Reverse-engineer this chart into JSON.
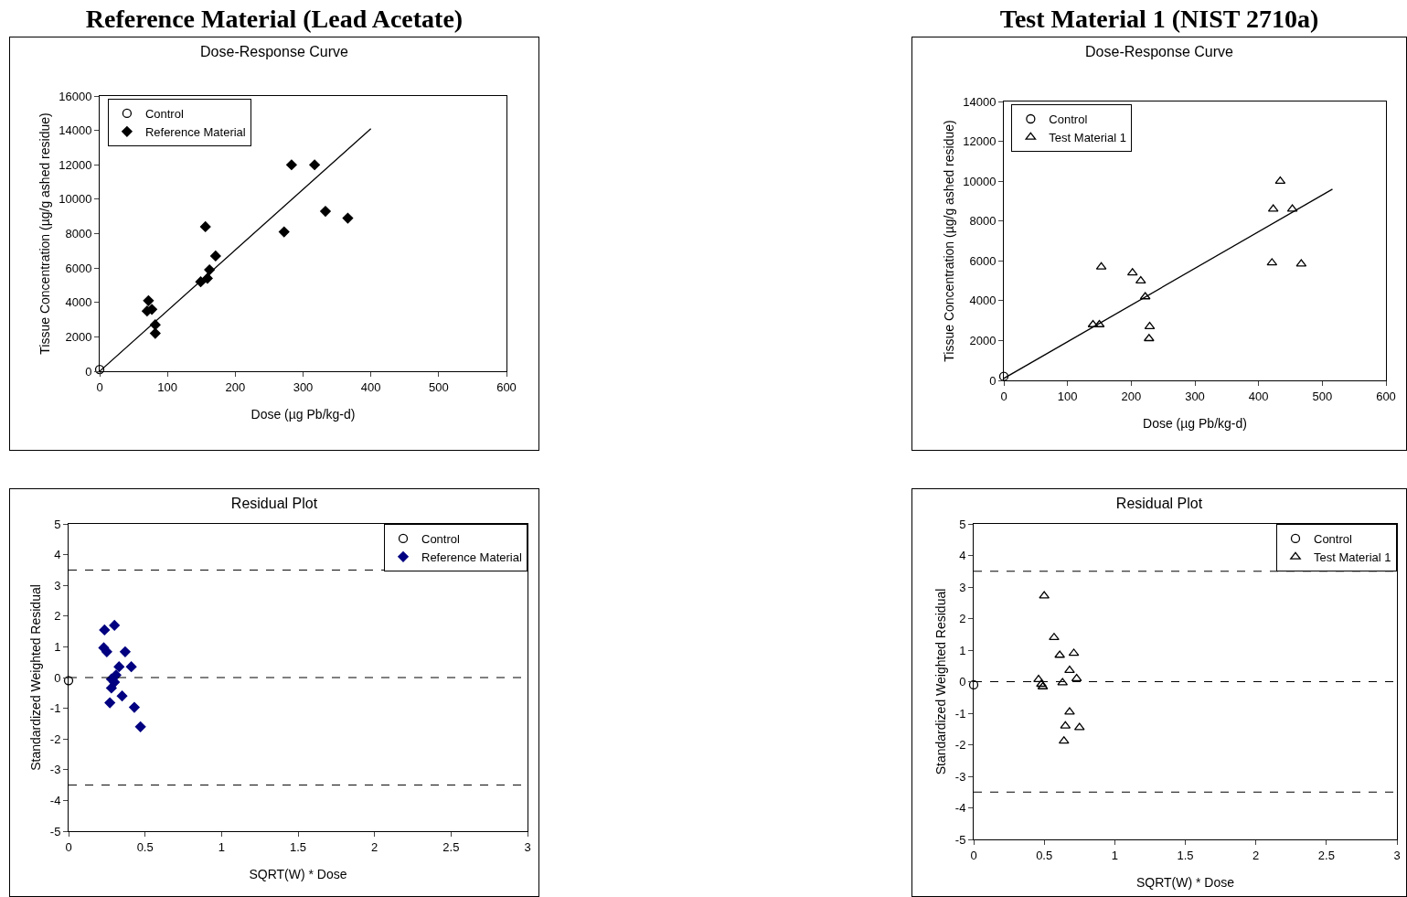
{
  "chart_data": [
    {
      "type": "scatter",
      "title": "Reference Material (Lead Acetate)",
      "subtitle": "Dose-Response Curve",
      "xlabel": "Dose (µg Pb/kg-d)",
      "ylabel": "Tissue Concentration (µg/g ashed residue)",
      "xlim": [
        0,
        600
      ],
      "xticks": [
        0,
        100,
        200,
        300,
        400,
        500,
        600
      ],
      "ylim": [
        0,
        16000
      ],
      "yticks": [
        0,
        2000,
        4000,
        6000,
        8000,
        10000,
        12000,
        14000,
        16000
      ],
      "grid": false,
      "legend": "top left",
      "series": [
        {
          "name": "Control",
          "color": "#000000",
          "marker": "circle",
          "x": [
            0
          ],
          "values": [
            100
          ]
        },
        {
          "name": "Reference Material",
          "color": "#000000",
          "marker": "diamond",
          "x": [
            72,
            70,
            77,
            82,
            82,
            149,
            159,
            156,
            162,
            171,
            272,
            283,
            317,
            333,
            366
          ],
          "values": [
            4100,
            3500,
            3600,
            2700,
            2200,
            5200,
            5400,
            8400,
            5900,
            6700,
            8100,
            12000,
            12000,
            9300,
            8900
          ]
        },
        {
          "type": "line",
          "color": "#000000",
          "marker": "none",
          "x": [
            0,
            400
          ],
          "values": [
            0,
            14100
          ]
        }
      ]
    },
    {
      "type": "scatter",
      "title": "Test Material 1 (NIST 2710a)",
      "subtitle": "Dose-Response Curve",
      "xlabel": "Dose (µg Pb/kg-d)",
      "ylabel": "Tissue Concentration (µg/g ashed residue)",
      "xlim": [
        0,
        600
      ],
      "xticks": [
        0,
        100,
        200,
        300,
        400,
        500,
        600
      ],
      "ylim": [
        0,
        14000
      ],
      "yticks": [
        0,
        2000,
        4000,
        6000,
        8000,
        10000,
        12000,
        14000
      ],
      "grid": false,
      "legend": "top left",
      "series": [
        {
          "name": "Control",
          "color": "#000000",
          "marker": "circle",
          "x": [
            0
          ],
          "values": [
            200
          ]
        },
        {
          "name": "Test Material 1",
          "color": "#000000",
          "marker": "triangle",
          "x": [
            434,
            423,
            453,
            421,
            467,
            153,
            202,
            215,
            222,
            140,
            150,
            229,
            228
          ],
          "values": [
            10000,
            8600,
            8600,
            5900,
            5850,
            5700,
            5400,
            5000,
            4200,
            2800,
            2800,
            2700,
            2100
          ]
        },
        {
          "type": "line",
          "color": "#000000",
          "marker": "none",
          "x": [
            0,
            516
          ],
          "values": [
            100,
            9600
          ]
        }
      ]
    },
    {
      "type": "scatter",
      "title": "Residual Plot",
      "xlabel": "SQRT(W) * Dose",
      "ylabel": "Standardized Weighted Residual",
      "xlim": [
        0,
        3
      ],
      "xticks": [
        0,
        0.5,
        1,
        1.5,
        2,
        2.5,
        3
      ],
      "ylim": [
        -5,
        5
      ],
      "yticks": [
        -5,
        -4,
        -3,
        -2,
        -1,
        0,
        1,
        2,
        3,
        4,
        5
      ],
      "grid": false,
      "legend": "top right",
      "series": [
        {
          "name": "Control",
          "color": "#000000",
          "marker": "circle",
          "x": [
            0
          ],
          "values": [
            -0.1
          ]
        },
        {
          "name": "Reference Material",
          "color": "#000080",
          "marker": "diamond",
          "x": [
            0.235,
            0.3,
            0.23,
            0.25,
            0.37,
            0.33,
            0.41,
            0.31,
            0.28,
            0.3,
            0.28,
            0.35,
            0.27,
            0.43,
            0.47
          ],
          "values": [
            1.55,
            1.7,
            0.97,
            0.84,
            0.84,
            0.35,
            0.35,
            0.08,
            -0.05,
            -0.15,
            -0.34,
            -0.6,
            -0.82,
            -0.97,
            -1.6
          ]
        }
      ],
      "ref_lines": [
        {
          "axis": "y",
          "value": 3.5,
          "line_style": "dashed",
          "color": "#000000"
        },
        {
          "axis": "y",
          "value": 0,
          "line_style": "dashed",
          "color": "#000000"
        },
        {
          "axis": "y",
          "value": -3.5,
          "line_style": "dashed",
          "color": "#000000"
        }
      ]
    },
    {
      "type": "scatter",
      "title": "Residual Plot",
      "xlabel": "SQRT(W) * Dose",
      "ylabel": "Standardized Weighted Residual",
      "xlim": [
        0,
        3
      ],
      "xticks": [
        0,
        0.5,
        1,
        1.5,
        2,
        2.5,
        3
      ],
      "ylim": [
        -5,
        5
      ],
      "yticks": [
        -5,
        -4,
        -3,
        -2,
        -1,
        0,
        1,
        2,
        3,
        4,
        5
      ],
      "grid": false,
      "legend": "top right",
      "series": [
        {
          "name": "Control",
          "color": "#000000",
          "marker": "circle",
          "x": [
            0
          ],
          "values": [
            -0.1
          ]
        },
        {
          "name": "Test Material 1",
          "color": "#000000",
          "marker": "triangle",
          "x": [
            0.5,
            0.57,
            0.61,
            0.71,
            0.68,
            0.73,
            0.63,
            0.46,
            0.48,
            0.49,
            0.68,
            0.65,
            0.75,
            0.64
          ],
          "values": [
            2.72,
            1.4,
            0.84,
            0.9,
            0.36,
            0.1,
            -0.03,
            0.07,
            -0.08,
            -0.16,
            -0.96,
            -1.4,
            -1.45,
            -1.88
          ]
        }
      ],
      "ref_lines": [
        {
          "axis": "y",
          "value": 3.5,
          "line_style": "dashed",
          "color": "#000000"
        },
        {
          "axis": "y",
          "value": 0,
          "line_style": "dashed",
          "color": "#000000"
        },
        {
          "axis": "y",
          "value": -3.5,
          "line_style": "dashed",
          "color": "#000000"
        }
      ]
    }
  ]
}
